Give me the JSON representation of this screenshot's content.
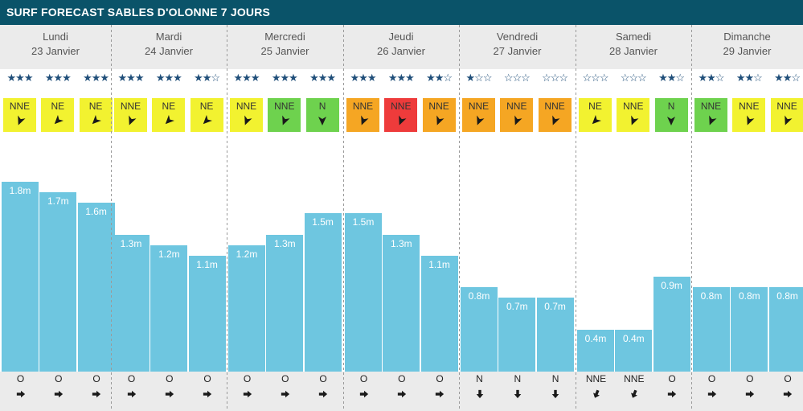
{
  "header": {
    "title": "SURF FORECAST SABLES D'OLONNE 7 JOURS"
  },
  "days": [
    {
      "name": "Lundi",
      "date": "23 Janvier"
    },
    {
      "name": "Mardi",
      "date": "24 Janvier"
    },
    {
      "name": "Mercredi",
      "date": "25 Janvier"
    },
    {
      "name": "Jeudi",
      "date": "26 Janvier"
    },
    {
      "name": "Vendredi",
      "date": "27 Janvier"
    },
    {
      "name": "Samedi",
      "date": "28 Janvier"
    },
    {
      "name": "Dimanche",
      "date": "29 Janvier"
    }
  ],
  "colors": {
    "title_bg": "#0a5369",
    "bar": "#6ec6e0",
    "stars": "#1f4e79",
    "wind_yellow": "#f2f230",
    "wind_green": "#6ed24e",
    "wind_orange": "#f5a623",
    "wind_red": "#ee3b3b"
  },
  "chart_data": {
    "type": "bar",
    "title": "SURF FORECAST SABLES D'OLONNE 7 JOURS",
    "unit": "m",
    "ylim": [
      0,
      2.2
    ],
    "values": [
      1.8,
      1.7,
      1.6,
      1.3,
      1.2,
      1.1,
      1.2,
      1.3,
      1.5,
      1.5,
      1.3,
      1.1,
      0.8,
      0.7,
      0.7,
      0.4,
      0.4,
      0.9,
      0.8,
      0.8,
      0.8
    ],
    "labels": [
      "1.8m",
      "1.7m",
      "1.6m",
      "1.3m",
      "1.2m",
      "1.1m",
      "1.2m",
      "1.3m",
      "1.5m",
      "1.5m",
      "1.3m",
      "1.1m",
      "0.8m",
      "0.7m",
      "0.7m",
      "0.4m",
      "0.4m",
      "0.9m",
      "0.8m",
      "0.8m",
      "0.8m"
    ],
    "ratings": [
      3,
      3,
      3,
      3,
      3,
      2,
      3,
      3,
      3,
      3,
      3,
      2,
      1,
      0,
      0,
      0,
      0,
      2,
      2,
      2,
      2
    ],
    "wind": [
      {
        "dir": "NNE",
        "level": "yellow",
        "deg": 202
      },
      {
        "dir": "NE",
        "level": "yellow",
        "deg": 225
      },
      {
        "dir": "NE",
        "level": "yellow",
        "deg": 225
      },
      {
        "dir": "NNE",
        "level": "yellow",
        "deg": 202
      },
      {
        "dir": "NE",
        "level": "yellow",
        "deg": 225
      },
      {
        "dir": "NE",
        "level": "yellow",
        "deg": 225
      },
      {
        "dir": "NNE",
        "level": "yellow",
        "deg": 202
      },
      {
        "dir": "NNE",
        "level": "green",
        "deg": 202
      },
      {
        "dir": "N",
        "level": "green",
        "deg": 180
      },
      {
        "dir": "NNE",
        "level": "orange",
        "deg": 202
      },
      {
        "dir": "NNE",
        "level": "red",
        "deg": 202
      },
      {
        "dir": "NNE",
        "level": "orange",
        "deg": 202
      },
      {
        "dir": "NNE",
        "level": "orange",
        "deg": 202
      },
      {
        "dir": "NNE",
        "level": "orange",
        "deg": 202
      },
      {
        "dir": "NNE",
        "level": "orange",
        "deg": 202
      },
      {
        "dir": "NE",
        "level": "yellow",
        "deg": 225
      },
      {
        "dir": "NNE",
        "level": "yellow",
        "deg": 202
      },
      {
        "dir": "N",
        "level": "green",
        "deg": 180
      },
      {
        "dir": "NNE",
        "level": "green",
        "deg": 202
      },
      {
        "dir": "NNE",
        "level": "yellow",
        "deg": 202
      },
      {
        "dir": "NNE",
        "level": "yellow",
        "deg": 202
      }
    ],
    "swell": [
      {
        "dir": "O",
        "deg": 90
      },
      {
        "dir": "O",
        "deg": 90
      },
      {
        "dir": "O",
        "deg": 90
      },
      {
        "dir": "O",
        "deg": 90
      },
      {
        "dir": "O",
        "deg": 90
      },
      {
        "dir": "O",
        "deg": 90
      },
      {
        "dir": "O",
        "deg": 90
      },
      {
        "dir": "O",
        "deg": 90
      },
      {
        "dir": "O",
        "deg": 90
      },
      {
        "dir": "O",
        "deg": 90
      },
      {
        "dir": "O",
        "deg": 90
      },
      {
        "dir": "O",
        "deg": 90
      },
      {
        "dir": "N",
        "deg": 180
      },
      {
        "dir": "N",
        "deg": 180
      },
      {
        "dir": "N",
        "deg": 180
      },
      {
        "dir": "NNE",
        "deg": 202
      },
      {
        "dir": "NNE",
        "deg": 202
      },
      {
        "dir": "O",
        "deg": 90
      },
      {
        "dir": "O",
        "deg": 90
      },
      {
        "dir": "O",
        "deg": 90
      },
      {
        "dir": "O",
        "deg": 90
      }
    ]
  }
}
